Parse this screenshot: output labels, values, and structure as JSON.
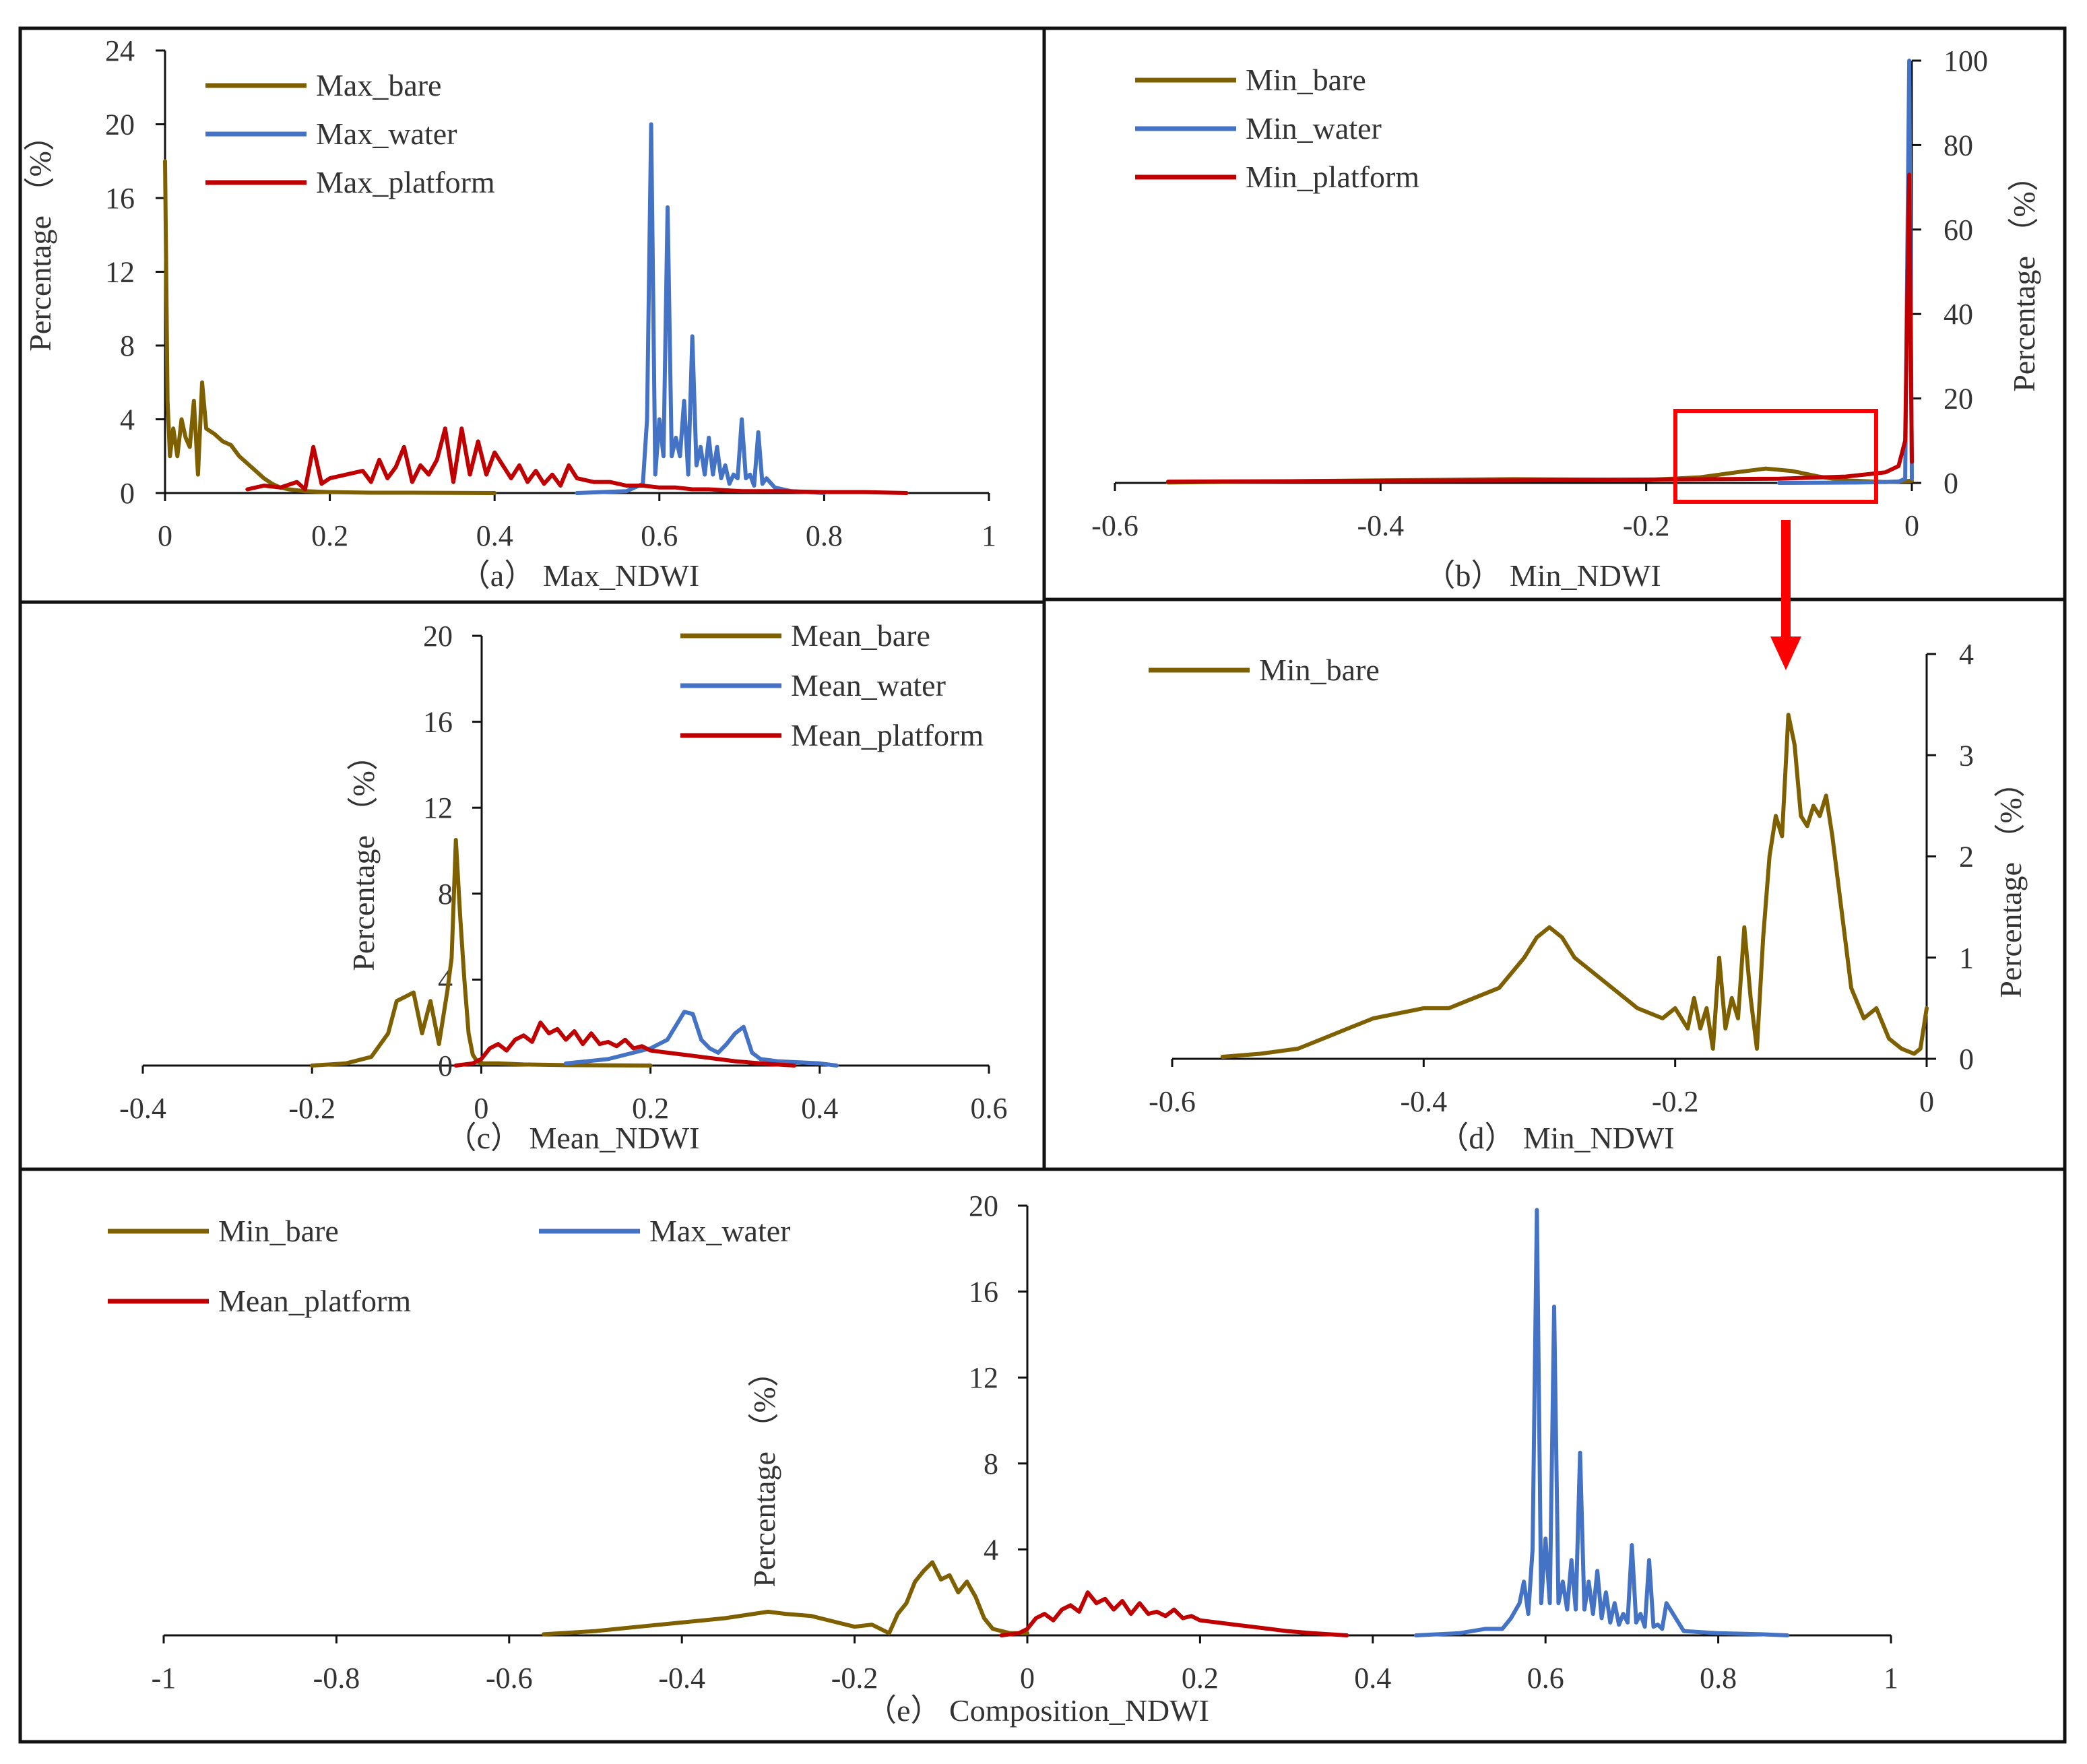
{
  "colors": {
    "bare": "#7f6000",
    "water": "#4472c4",
    "platform": "#c00000",
    "highlight": "#ff0000"
  },
  "chart_data": [
    {
      "id": "a",
      "type": "line",
      "caption": "（a） Max_NDWI",
      "ylabel": "Percentage （%）",
      "xlim": [
        0,
        1
      ],
      "ylim": [
        0,
        24
      ],
      "xticks": [
        0,
        0.2,
        0.4,
        0.6,
        0.8,
        1
      ],
      "yticks": [
        0,
        4,
        8,
        12,
        16,
        20,
        24
      ],
      "series": [
        {
          "name": "Max_bare",
          "color": "bare",
          "x": [
            0,
            0.003,
            0.006,
            0.01,
            0.015,
            0.02,
            0.025,
            0.03,
            0.035,
            0.04,
            0.045,
            0.05,
            0.06,
            0.07,
            0.08,
            0.09,
            0.1,
            0.11,
            0.12,
            0.13,
            0.14,
            0.15,
            0.17,
            0.2,
            0.25,
            0.3,
            0.35,
            0.4
          ],
          "y": [
            18,
            5,
            2,
            3.5,
            2,
            4,
            3,
            2.5,
            5,
            1,
            6,
            3.5,
            3.2,
            2.8,
            2.6,
            2,
            1.6,
            1.2,
            0.8,
            0.5,
            0.3,
            0.2,
            0.1,
            0.05,
            0.02,
            0.02,
            0.01,
            0
          ]
        },
        {
          "name": "Max_water",
          "color": "water",
          "x": [
            0.5,
            0.56,
            0.58,
            0.585,
            0.59,
            0.595,
            0.6,
            0.605,
            0.61,
            0.615,
            0.62,
            0.625,
            0.63,
            0.635,
            0.64,
            0.645,
            0.65,
            0.655,
            0.66,
            0.665,
            0.67,
            0.675,
            0.68,
            0.685,
            0.69,
            0.695,
            0.7,
            0.705,
            0.71,
            0.715,
            0.72,
            0.725,
            0.73,
            0.74,
            0.76,
            0.8
          ],
          "y": [
            0,
            0.1,
            0.5,
            4,
            20,
            1,
            4,
            2,
            15.5,
            2,
            3,
            2,
            5,
            1,
            8.5,
            1.5,
            2.5,
            1,
            3,
            1,
            2.5,
            0.8,
            1.5,
            0.5,
            1,
            0.8,
            4,
            0.8,
            1,
            0.4,
            3.3,
            0.5,
            0.8,
            0.3,
            0.1,
            0
          ]
        },
        {
          "name": "Max_platform",
          "color": "platform",
          "x": [
            0.1,
            0.12,
            0.14,
            0.16,
            0.17,
            0.18,
            0.19,
            0.2,
            0.22,
            0.24,
            0.25,
            0.26,
            0.27,
            0.28,
            0.29,
            0.3,
            0.31,
            0.32,
            0.33,
            0.34,
            0.35,
            0.36,
            0.37,
            0.38,
            0.39,
            0.4,
            0.41,
            0.42,
            0.43,
            0.44,
            0.45,
            0.46,
            0.47,
            0.48,
            0.49,
            0.5,
            0.52,
            0.54,
            0.56,
            0.58,
            0.6,
            0.62,
            0.64,
            0.66,
            0.7,
            0.75,
            0.8,
            0.85,
            0.9
          ],
          "y": [
            0.2,
            0.4,
            0.3,
            0.6,
            0.2,
            2.5,
            0.5,
            0.8,
            1,
            1.2,
            0.6,
            1.8,
            0.8,
            1.4,
            2.5,
            0.6,
            1.5,
            1,
            1.8,
            3.5,
            0.6,
            3.5,
            1,
            2.8,
            1,
            2.2,
            1.5,
            0.8,
            1.5,
            0.6,
            1.2,
            0.5,
            1,
            0.4,
            1.5,
            0.8,
            0.6,
            0.6,
            0.4,
            0.4,
            0.3,
            0.3,
            0.2,
            0.2,
            0.1,
            0.1,
            0.05,
            0.05,
            0
          ]
        }
      ]
    },
    {
      "id": "b",
      "type": "line",
      "caption": "（b） Min_NDWI",
      "ylabel": "Percentage （%）",
      "xlim": [
        -0.6,
        0
      ],
      "ylim": [
        0,
        100
      ],
      "xticks": [
        -0.6,
        -0.4,
        -0.2,
        0
      ],
      "yticks": [
        0,
        20,
        40,
        60,
        80,
        100
      ],
      "series": [
        {
          "name": "Min_bare",
          "color": "bare",
          "x": [
            -0.56,
            -0.5,
            -0.4,
            -0.3,
            -0.2,
            -0.16,
            -0.13,
            -0.11,
            -0.09,
            -0.07,
            -0.05,
            -0.02,
            0
          ],
          "y": [
            0.1,
            0.3,
            0.6,
            0.9,
            0.7,
            1.3,
            2.6,
            3.4,
            2.8,
            1.5,
            0.6,
            0.2,
            0.5
          ]
        },
        {
          "name": "Min_water",
          "color": "water",
          "x": [
            -0.1,
            -0.04,
            -0.01,
            -0.005,
            -0.002,
            0
          ],
          "y": [
            0,
            0.1,
            0.3,
            1,
            100,
            1
          ]
        },
        {
          "name": "Min_platform",
          "color": "platform",
          "x": [
            -0.56,
            -0.4,
            -0.3,
            -0.2,
            -0.1,
            -0.05,
            -0.02,
            -0.01,
            -0.005,
            -0.002,
            0
          ],
          "y": [
            0.3,
            0.5,
            0.6,
            0.8,
            1,
            1.5,
            2.5,
            4,
            10,
            73,
            5
          ]
        }
      ]
    },
    {
      "id": "c",
      "type": "line",
      "caption": "（c） Mean_NDWI",
      "ylabel": "Percentage （%）",
      "xlim": [
        -0.4,
        0.6
      ],
      "ylim": [
        0,
        20
      ],
      "xticks": [
        -0.4,
        -0.2,
        0,
        0.2,
        0.4,
        0.6
      ],
      "yticks": [
        0,
        4,
        8,
        12,
        16,
        20
      ],
      "series": [
        {
          "name": "Mean_bare",
          "color": "bare",
          "x": [
            -0.2,
            -0.16,
            -0.13,
            -0.11,
            -0.1,
            -0.09,
            -0.08,
            -0.07,
            -0.06,
            -0.05,
            -0.04,
            -0.035,
            -0.03,
            -0.025,
            -0.02,
            -0.015,
            -0.01,
            -0.005,
            0,
            0.02,
            0.05,
            0.1,
            0.2
          ],
          "y": [
            0,
            0.1,
            0.4,
            1.5,
            3,
            3.2,
            3.4,
            1.5,
            3,
            1,
            3.5,
            5,
            10.5,
            7,
            4,
            1.5,
            0.5,
            0.2,
            0.1,
            0.1,
            0.05,
            0.02,
            0
          ]
        },
        {
          "name": "Mean_water",
          "color": "water",
          "x": [
            0.1,
            0.15,
            0.2,
            0.22,
            0.24,
            0.25,
            0.26,
            0.27,
            0.28,
            0.29,
            0.3,
            0.31,
            0.32,
            0.33,
            0.35,
            0.4,
            0.42
          ],
          "y": [
            0.1,
            0.3,
            0.8,
            1.2,
            2.5,
            2.4,
            1.2,
            0.8,
            0.6,
            1,
            1.5,
            1.8,
            0.6,
            0.3,
            0.2,
            0.1,
            0
          ]
        },
        {
          "name": "Mean_platform",
          "color": "platform",
          "x": [
            -0.03,
            -0.01,
            0,
            0.01,
            0.02,
            0.03,
            0.04,
            0.05,
            0.06,
            0.07,
            0.08,
            0.09,
            0.1,
            0.11,
            0.12,
            0.13,
            0.14,
            0.15,
            0.16,
            0.17,
            0.18,
            0.19,
            0.2,
            0.22,
            0.24,
            0.26,
            0.28,
            0.3,
            0.33,
            0.37
          ],
          "y": [
            0,
            0.1,
            0.3,
            0.8,
            1,
            0.7,
            1.2,
            1.4,
            1.1,
            2,
            1.5,
            1.7,
            1.2,
            1.6,
            1,
            1.5,
            1,
            1.1,
            0.9,
            1.2,
            0.8,
            0.9,
            0.7,
            0.6,
            0.5,
            0.4,
            0.3,
            0.2,
            0.1,
            0
          ]
        }
      ]
    },
    {
      "id": "d",
      "type": "line",
      "caption": "（d） Min_NDWI",
      "ylabel": "Percentage （%）",
      "xlim": [
        -0.6,
        0
      ],
      "ylim": [
        0,
        4
      ],
      "xticks": [
        -0.6,
        -0.4,
        -0.2,
        0
      ],
      "yticks": [
        0,
        1,
        2,
        3,
        4
      ],
      "series": [
        {
          "name": "Min_bare",
          "color": "bare",
          "x": [
            -0.56,
            -0.53,
            -0.5,
            -0.48,
            -0.46,
            -0.44,
            -0.42,
            -0.4,
            -0.38,
            -0.36,
            -0.34,
            -0.32,
            -0.31,
            -0.3,
            -0.29,
            -0.28,
            -0.27,
            -0.26,
            -0.25,
            -0.24,
            -0.23,
            -0.22,
            -0.21,
            -0.2,
            -0.19,
            -0.185,
            -0.18,
            -0.175,
            -0.17,
            -0.165,
            -0.16,
            -0.155,
            -0.15,
            -0.145,
            -0.14,
            -0.135,
            -0.13,
            -0.125,
            -0.12,
            -0.115,
            -0.11,
            -0.105,
            -0.1,
            -0.095,
            -0.09,
            -0.085,
            -0.08,
            -0.075,
            -0.07,
            -0.065,
            -0.06,
            -0.05,
            -0.04,
            -0.03,
            -0.02,
            -0.01,
            -0.005,
            0
          ],
          "y": [
            0.02,
            0.05,
            0.1,
            0.2,
            0.3,
            0.4,
            0.45,
            0.5,
            0.5,
            0.6,
            0.7,
            1.0,
            1.2,
            1.3,
            1.2,
            1.0,
            0.9,
            0.8,
            0.7,
            0.6,
            0.5,
            0.45,
            0.4,
            0.5,
            0.3,
            0.6,
            0.3,
            0.5,
            0.1,
            1.0,
            0.3,
            0.6,
            0.4,
            1.3,
            0.6,
            0.1,
            1.2,
            2.0,
            2.4,
            2.2,
            3.4,
            3.1,
            2.4,
            2.3,
            2.5,
            2.4,
            2.6,
            2.2,
            1.7,
            1.2,
            0.7,
            0.4,
            0.5,
            0.2,
            0.1,
            0.05,
            0.1,
            0.5
          ]
        }
      ]
    },
    {
      "id": "e",
      "type": "line",
      "caption": "（e） Composition_NDWI",
      "ylabel": "Percentage （%）",
      "xlim": [
        -1,
        1
      ],
      "ylim": [
        0,
        20
      ],
      "xticks": [
        -1,
        -0.8,
        -0.6,
        -0.4,
        -0.2,
        0,
        0.2,
        0.4,
        0.6,
        0.8,
        1
      ],
      "yticks": [
        4,
        8,
        12,
        16,
        20
      ],
      "series": [
        {
          "name": "Min_bare",
          "color": "bare",
          "x": [
            -0.56,
            -0.5,
            -0.45,
            -0.4,
            -0.35,
            -0.3,
            -0.28,
            -0.25,
            -0.22,
            -0.2,
            -0.18,
            -0.16,
            -0.15,
            -0.14,
            -0.13,
            -0.12,
            -0.11,
            -0.1,
            -0.09,
            -0.08,
            -0.07,
            -0.06,
            -0.05,
            -0.04,
            -0.02,
            0
          ],
          "y": [
            0.05,
            0.2,
            0.4,
            0.6,
            0.8,
            1.1,
            1.0,
            0.9,
            0.6,
            0.4,
            0.5,
            0.1,
            1.0,
            1.5,
            2.5,
            3.0,
            3.4,
            2.6,
            2.8,
            2.0,
            2.5,
            1.8,
            0.8,
            0.3,
            0.1,
            0.1
          ]
        },
        {
          "name": "Max_water",
          "color": "water",
          "x": [
            0.45,
            0.5,
            0.53,
            0.55,
            0.56,
            0.57,
            0.575,
            0.58,
            0.585,
            0.59,
            0.595,
            0.6,
            0.605,
            0.61,
            0.615,
            0.62,
            0.625,
            0.63,
            0.635,
            0.64,
            0.645,
            0.65,
            0.655,
            0.66,
            0.665,
            0.67,
            0.675,
            0.68,
            0.685,
            0.69,
            0.695,
            0.7,
            0.705,
            0.71,
            0.715,
            0.72,
            0.725,
            0.73,
            0.735,
            0.74,
            0.76,
            0.8,
            0.85,
            0.88
          ],
          "y": [
            0,
            0.1,
            0.3,
            0.3,
            0.8,
            1.5,
            2.5,
            1.0,
            4.0,
            19.8,
            1.5,
            4.5,
            1.5,
            15.3,
            1.5,
            2.5,
            1.2,
            3.5,
            1.2,
            8.5,
            1.2,
            2.5,
            1.0,
            3.0,
            0.8,
            2.0,
            0.6,
            1.5,
            0.5,
            1.0,
            0.6,
            4.2,
            0.6,
            1.0,
            0.4,
            3.5,
            0.4,
            0.5,
            0.3,
            1.5,
            0.2,
            0.1,
            0.05,
            0
          ]
        },
        {
          "name": "Mean_platform",
          "color": "platform",
          "x": [
            -0.03,
            -0.01,
            0,
            0.01,
            0.02,
            0.03,
            0.04,
            0.05,
            0.06,
            0.07,
            0.08,
            0.09,
            0.1,
            0.11,
            0.12,
            0.13,
            0.14,
            0.15,
            0.16,
            0.17,
            0.18,
            0.19,
            0.2,
            0.22,
            0.24,
            0.26,
            0.28,
            0.3,
            0.33,
            0.37
          ],
          "y": [
            0,
            0.1,
            0.3,
            0.8,
            1,
            0.7,
            1.2,
            1.4,
            1.1,
            2,
            1.5,
            1.7,
            1.2,
            1.6,
            1,
            1.5,
            1,
            1.1,
            0.9,
            1.2,
            0.8,
            0.9,
            0.7,
            0.6,
            0.5,
            0.4,
            0.3,
            0.2,
            0.1,
            0
          ]
        }
      ]
    }
  ]
}
